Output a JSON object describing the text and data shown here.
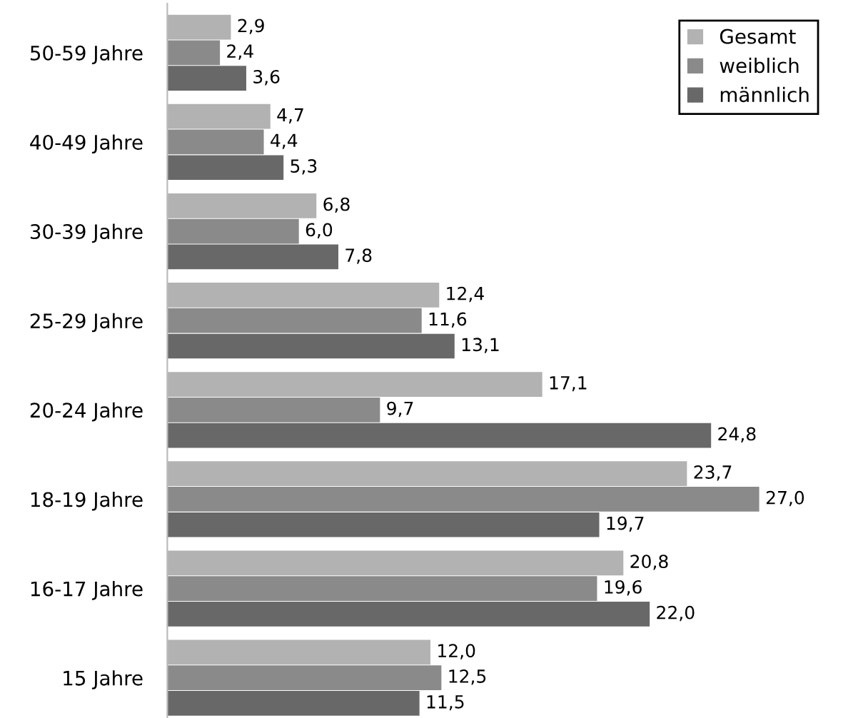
{
  "chart_data": {
    "type": "bar",
    "orientation": "horizontal",
    "categories": [
      "50-59 Jahre",
      "40-49 Jahre",
      "30-39 Jahre",
      "25-29 Jahre",
      "20-24 Jahre",
      "18-19 Jahre",
      "16-17 Jahre",
      "15 Jahre"
    ],
    "series": [
      {
        "name": "Gesamt",
        "color": "#b2b2b2",
        "values": [
          2.9,
          4.7,
          6.8,
          12.4,
          17.1,
          23.7,
          20.8,
          12.0
        ],
        "value_labels": [
          "2,9",
          "4,7",
          "6,8",
          "12,4",
          "17,1",
          "23,7",
          "20,8",
          "12,0"
        ]
      },
      {
        "name": "weiblich",
        "color": "#8a8a8a",
        "values": [
          2.4,
          4.4,
          6.0,
          11.6,
          9.7,
          27.0,
          19.6,
          12.5
        ],
        "value_labels": [
          "2,4",
          "4,4",
          "6,0",
          "11,6",
          "9,7",
          "27,0",
          "19,6",
          "12,5"
        ]
      },
      {
        "name": "männlich",
        "color": "#686868",
        "values": [
          3.6,
          5.3,
          7.8,
          13.1,
          24.8,
          19.7,
          22.0,
          11.5
        ],
        "value_labels": [
          "3,6",
          "5,3",
          "7,8",
          "13,1",
          "24,8",
          "19,7",
          "22,0",
          "11,5"
        ]
      }
    ],
    "legend": "top right",
    "grid": false
  }
}
